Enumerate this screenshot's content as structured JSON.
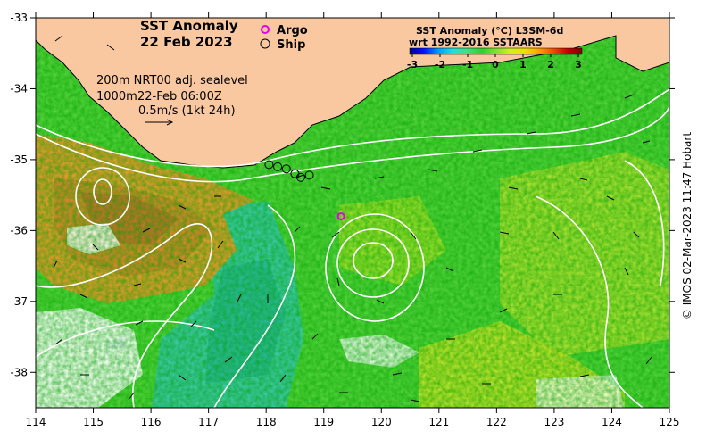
{
  "title": {
    "line1": "SST Anomaly",
    "line2": "22 Feb 2023"
  },
  "legend": {
    "argo_label": "Argo",
    "ship_label": "Ship",
    "argo_color": "#e600e6",
    "ship_color": "#000000"
  },
  "contour_info": {
    "line1": "200m  NRT00 adj. sealevel",
    "line2_depth": "1000m",
    "line2_time": "22-Feb 06:00Z",
    "scale_label": "0.5m/s (1kt 24h)"
  },
  "colorbar": {
    "title_line1": "SST Anomaly (°C) L3SM-6d",
    "title_line2": "wrt 1992-2016 SSTAARS",
    "ticks": [
      "-3",
      "-2",
      "-1",
      "0",
      "1",
      "2",
      "3"
    ],
    "colors": [
      "#000090",
      "#0010ff",
      "#00a0ff",
      "#20e0e0",
      "#40e080",
      "#30d030",
      "#80e030",
      "#d0f020",
      "#f0e000",
      "#ffa000",
      "#f05000",
      "#c00000",
      "#800000"
    ]
  },
  "axes": {
    "x_ticks": [
      "114",
      "115",
      "116",
      "117",
      "118",
      "119",
      "120",
      "121",
      "122",
      "123",
      "124",
      "125"
    ],
    "y_ticks": [
      "-33",
      "-34",
      "-35",
      "-36",
      "-37",
      "-38"
    ],
    "lon_range": [
      114,
      125
    ],
    "lat_range": [
      -38.5,
      -33
    ]
  },
  "credit": "© IMOS 02-Mar-2023 11:47 Hobart",
  "colors": {
    "land": "#fac8a0",
    "ocean_base": "#52d23a",
    "warm_anomaly": "#e69a2e",
    "cool_anomaly": "#3cc8a8",
    "contour": "#ffffff"
  },
  "argo_float": {
    "lon": 119.3,
    "lat": -35.8
  },
  "ship_track": [
    {
      "lon": 118.05,
      "lat": -35.07
    },
    {
      "lon": 118.2,
      "lat": -35.1
    },
    {
      "lon": 118.35,
      "lat": -35.13
    },
    {
      "lon": 118.5,
      "lat": -35.2
    },
    {
      "lon": 118.6,
      "lat": -35.25
    },
    {
      "lon": 118.75,
      "lat": -35.22
    }
  ]
}
